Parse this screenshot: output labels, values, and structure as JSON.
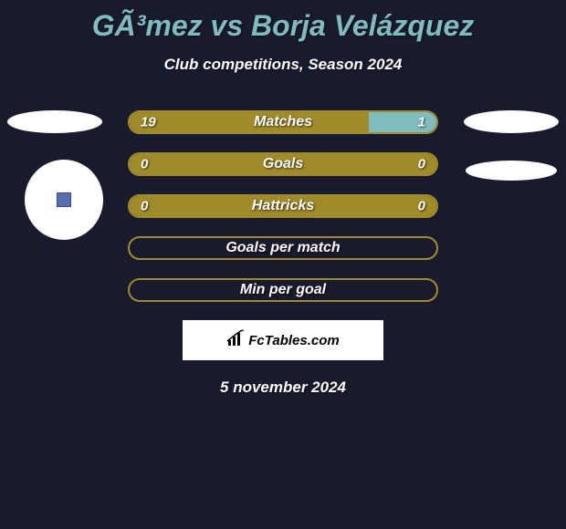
{
  "title_color": "#7fbcc0",
  "title": "GÃ³mez vs Borja Velázquez",
  "subtitle": "Club competitions, Season 2024",
  "date": "5 november 2024",
  "logo_text": "FcTables.com",
  "background_color": "#1a1a2e",
  "bars": [
    {
      "label": "Matches",
      "left_value": "19",
      "right_value": "1",
      "left_width_pct": 78,
      "right_width_pct": 22,
      "left_color": "#a08b2a",
      "right_color": "#7fbcc0",
      "border_color": "#a08b2a"
    },
    {
      "label": "Goals",
      "left_value": "0",
      "right_value": "0",
      "left_width_pct": 100,
      "right_width_pct": 0,
      "left_color": "#a08b2a",
      "right_color": "#7fbcc0",
      "border_color": "#a08b2a"
    },
    {
      "label": "Hattricks",
      "left_value": "0",
      "right_value": "0",
      "left_width_pct": 100,
      "right_width_pct": 0,
      "left_color": "#a08b2a",
      "right_color": "#7fbcc0",
      "border_color": "#a08b2a"
    },
    {
      "label": "Goals per match",
      "left_value": "",
      "right_value": "",
      "left_width_pct": 0,
      "right_width_pct": 0,
      "left_color": "#a08b2a",
      "right_color": "#7fbcc0",
      "border_color": "#a08b2a"
    },
    {
      "label": "Min per goal",
      "left_value": "",
      "right_value": "",
      "left_width_pct": 0,
      "right_width_pct": 0,
      "left_color": "#a08b2a",
      "right_color": "#7fbcc0",
      "border_color": "#a08b2a"
    }
  ]
}
